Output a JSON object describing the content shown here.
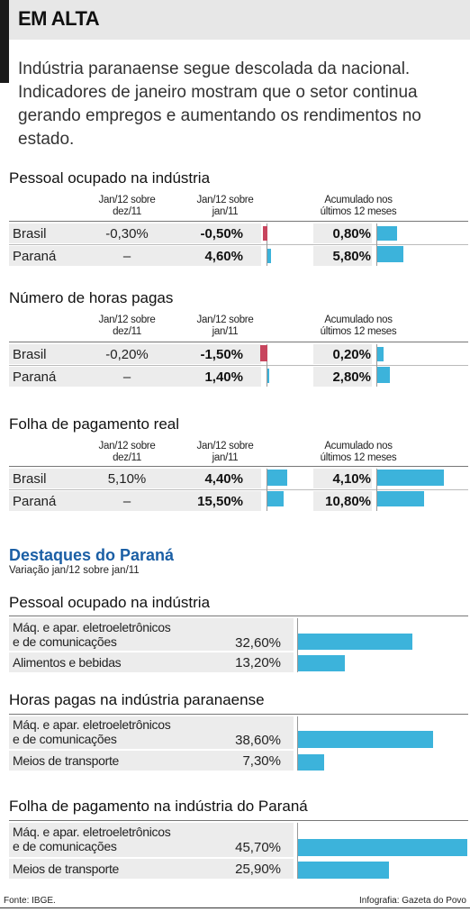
{
  "header": {
    "title": "EM ALTA",
    "intro": "Indústria paranaense segue descolada da nacional. Indicadores de janeiro mostram que o setor continua gerando empregos e aumentando os rendimentos no estado."
  },
  "colors": {
    "blue": "#3cb3db",
    "red": "#c8455e",
    "title_blue": "#1b5fa5"
  },
  "column_headers": {
    "c1": "Jan/12 sobre dez/11",
    "c2": "Jan/12 sobre jan/11",
    "c3": "Acumulado nos últimos 12 meses"
  },
  "tables": [
    {
      "title": "Pessoal ocupado na indústria",
      "rows": [
        {
          "label": "Brasil",
          "c1": "-0,30%",
          "c2": "-0,50%",
          "c3": "0,80%"
        },
        {
          "label": "Paraná",
          "c1": "–",
          "c2": "4,60%",
          "c3": "5,80%"
        }
      ]
    },
    {
      "title": "Número de horas pagas",
      "rows": [
        {
          "label": "Brasil",
          "c1": "-0,20%",
          "c2": "-1,50%",
          "c3": "0,20%"
        },
        {
          "label": "Paraná",
          "c1": "–",
          "c2": "1,40%",
          "c3": "2,80%"
        }
      ]
    },
    {
      "title": "Folha de pagamento real",
      "rows": [
        {
          "label": "Brasil",
          "c1": "5,10%",
          "c2": "4,40%",
          "c3": "4,10%"
        },
        {
          "label": "Paraná",
          "c1": "–",
          "c2": "15,50%",
          "c3": "10,80%"
        }
      ]
    }
  ],
  "destaques": {
    "title": "Destaques do Paraná",
    "subtitle": "Variação jan/12 sobre jan/11",
    "groups": [
      {
        "title": "Pessoal ocupado na indústria",
        "rows": [
          {
            "label1": "Máq. e apar. eletroeletrônicos",
            "label2": "e de comunicações",
            "value": "32,60%"
          },
          {
            "label1": "Alimentos e bebidas",
            "label2": "",
            "value": "13,20%"
          }
        ]
      },
      {
        "title": "Horas pagas na indústria paranaense",
        "rows": [
          {
            "label1": "Máq. e apar. eletroeletrônicos",
            "label2": "e de comunicações",
            "value": "38,60%"
          },
          {
            "label1": "Meios de transporte",
            "label2": "",
            "value": "7,30%"
          }
        ]
      },
      {
        "title": "Folha de pagamento na indústria do Paraná",
        "rows": [
          {
            "label1": "Máq. e apar. eletroeletrônicos",
            "label2": "e de comunicações",
            "value": "45,70%"
          },
          {
            "label1": "Meios de transporte",
            "label2": "",
            "value": "25,90%"
          }
        ]
      }
    ]
  },
  "footer": {
    "source": "Fonte: IBGE.",
    "credit": "Infografia: Gazeta do Povo"
  },
  "chart_data": [
    {
      "type": "table",
      "title": "Pessoal ocupado na indústria",
      "categories": [
        "Brasil",
        "Paraná"
      ],
      "series": [
        {
          "name": "Jan/12 sobre dez/11",
          "values": [
            -0.3,
            null
          ]
        },
        {
          "name": "Jan/12 sobre jan/11",
          "values": [
            -0.5,
            4.6
          ]
        },
        {
          "name": "Acumulado nos últimos 12 meses",
          "values": [
            0.8,
            5.8
          ]
        }
      ]
    },
    {
      "type": "table",
      "title": "Número de horas pagas",
      "categories": [
        "Brasil",
        "Paraná"
      ],
      "series": [
        {
          "name": "Jan/12 sobre dez/11",
          "values": [
            -0.2,
            null
          ]
        },
        {
          "name": "Jan/12 sobre jan/11",
          "values": [
            -1.5,
            1.4
          ]
        },
        {
          "name": "Acumulado nos últimos 12 meses",
          "values": [
            0.2,
            2.8
          ]
        }
      ]
    },
    {
      "type": "table",
      "title": "Folha de pagamento real",
      "categories": [
        "Brasil",
        "Paraná"
      ],
      "series": [
        {
          "name": "Jan/12 sobre dez/11",
          "values": [
            5.1,
            null
          ]
        },
        {
          "name": "Jan/12 sobre jan/11",
          "values": [
            4.4,
            15.5
          ]
        },
        {
          "name": "Acumulado nos últimos 12 meses",
          "values": [
            4.1,
            10.8
          ]
        }
      ]
    },
    {
      "type": "bar",
      "title": "Pessoal ocupado na indústria",
      "categories": [
        "Máq. e apar. eletroeletrônicos e de comunicações",
        "Alimentos e bebidas"
      ],
      "values": [
        32.6,
        13.2
      ]
    },
    {
      "type": "bar",
      "title": "Horas pagas na indústria paranaense",
      "categories": [
        "Máq. e apar. eletroeletrônicos e de comunicações",
        "Meios de transporte"
      ],
      "values": [
        38.6,
        7.3
      ]
    },
    {
      "type": "bar",
      "title": "Folha de pagamento na indústria do Paraná",
      "categories": [
        "Máq. e apar. eletroeletrônicos e de comunicações",
        "Meios de transporte"
      ],
      "values": [
        45.7,
        25.9
      ]
    }
  ]
}
